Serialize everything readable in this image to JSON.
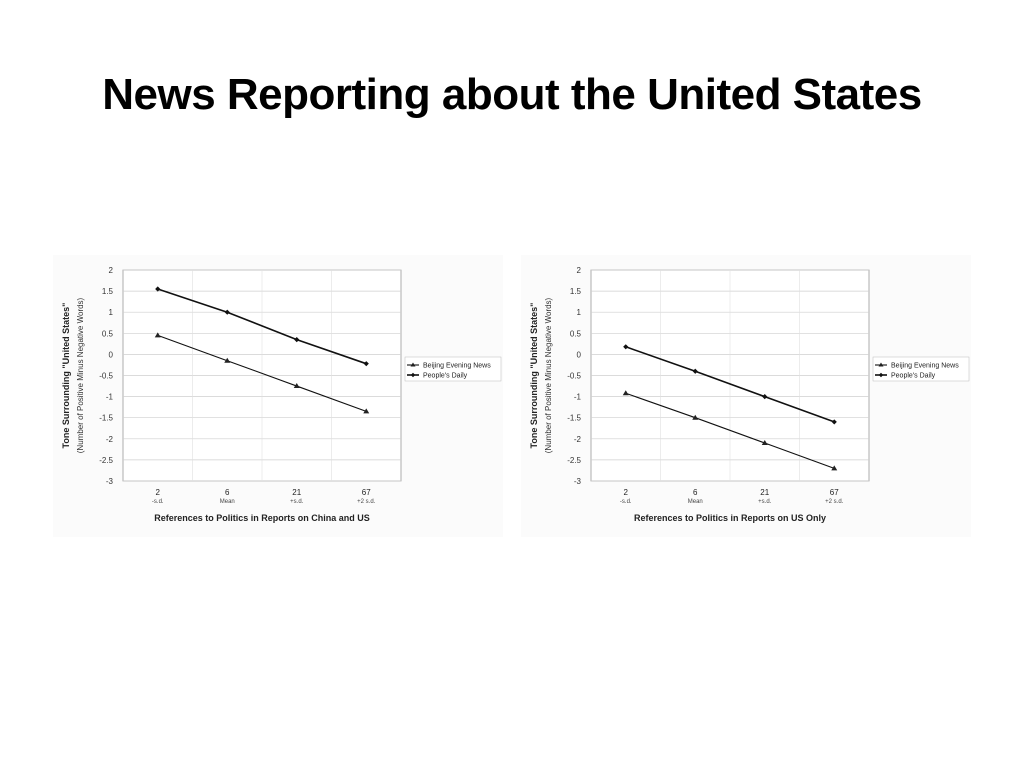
{
  "slide": {
    "title": "News Reporting about the United States"
  },
  "chart_data": [
    {
      "type": "line",
      "title": "",
      "xlabel": "References to Politics in Reports on China and US",
      "ylabel": "Tone Surrounding \"United States\"",
      "ylabel_sub": "(Number of Positive Minus Negative Words)",
      "categories": [
        "2",
        "6",
        "21",
        "67"
      ],
      "category_sublabels": [
        "-s.d.",
        "Mean",
        "+s.d.",
        "+2 s.d."
      ],
      "ylim": [
        -3,
        2
      ],
      "yticks": [
        "2",
        "1.5",
        "1",
        "0.5",
        "0",
        "-0.5",
        "-1",
        "-1.5",
        "-2",
        "-2.5",
        "-3"
      ],
      "grid": true,
      "legend_position": "right",
      "series": [
        {
          "name": "Beijing Evening News",
          "values": [
            0.45,
            -0.15,
            -0.75,
            -1.35
          ],
          "marker": "triangle"
        },
        {
          "name": "People's Daily",
          "values": [
            1.55,
            1.0,
            0.35,
            -0.22
          ],
          "marker": "diamond"
        }
      ]
    },
    {
      "type": "line",
      "title": "",
      "xlabel": "References to Politics in Reports on US Only",
      "ylabel": "Tone Surrounding \"United States\"",
      "ylabel_sub": "(Number of Positive Minus Negative Words)",
      "categories": [
        "2",
        "6",
        "21",
        "67"
      ],
      "category_sublabels": [
        "-s.d.",
        "Mean",
        "+s.d.",
        "+2 s.d."
      ],
      "ylim": [
        -3,
        2
      ],
      "yticks": [
        "2",
        "1.5",
        "1",
        "0.5",
        "0",
        "-0.5",
        "-1",
        "-1.5",
        "-2",
        "-2.5",
        "-3"
      ],
      "grid": true,
      "legend_position": "right",
      "series": [
        {
          "name": "Beijing Evening News",
          "values": [
            -0.92,
            -1.5,
            -2.1,
            -2.7
          ],
          "marker": "triangle"
        },
        {
          "name": "People's Daily",
          "values": [
            0.18,
            -0.4,
            -1.0,
            -1.6
          ],
          "marker": "diamond"
        }
      ]
    }
  ]
}
